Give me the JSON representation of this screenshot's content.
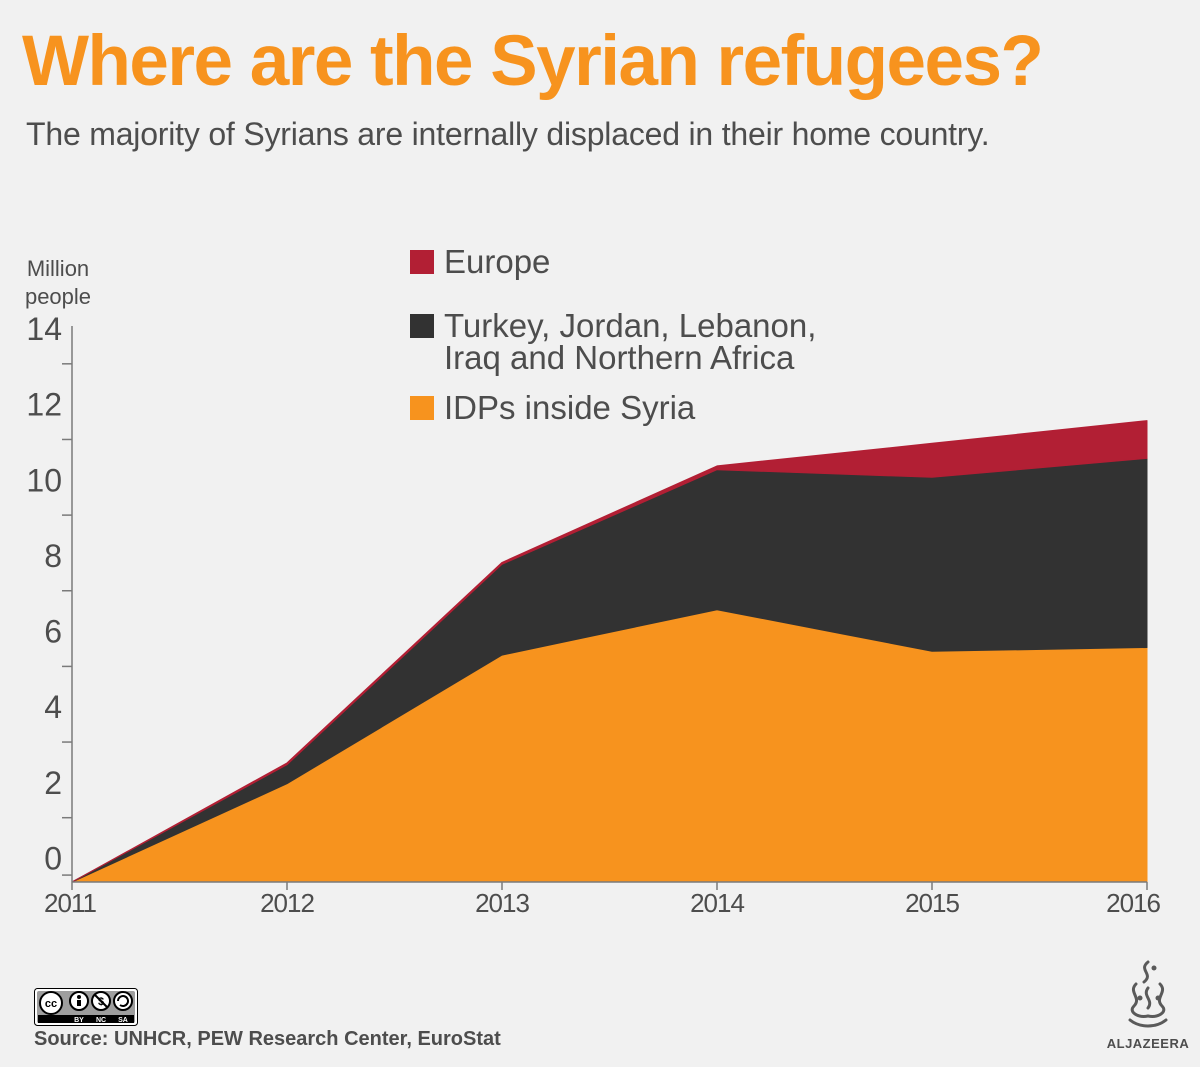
{
  "header": {
    "title": "Where are the Syrian refugees?",
    "subtitle": "The majority of Syrians are internally displaced in their home country."
  },
  "chart_data": {
    "type": "area",
    "stacked": true,
    "x": [
      2011,
      2012,
      2013,
      2014,
      2015,
      2016
    ],
    "ylabel": "Million people",
    "ylim": [
      -0.7,
      14
    ],
    "yticks": [
      0,
      2,
      4,
      6,
      8,
      10,
      12,
      14
    ],
    "grid": false,
    "legend_position": "top",
    "series": [
      {
        "name": "IDPs inside Syria",
        "color": "#f7931e",
        "values": [
          -0.7,
          1.9,
          5.3,
          6.5,
          5.4,
          5.5
        ]
      },
      {
        "name": "Turkey, Jordan, Lebanon, Iraq and Northern Africa",
        "color": "#323232",
        "values": [
          0.0,
          0.5,
          2.4,
          3.7,
          4.6,
          5.0
        ]
      },
      {
        "name": "Europe",
        "color": "#b21f34",
        "values": [
          0.0,
          0.05,
          0.05,
          0.1,
          0.9,
          1.0
        ]
      }
    ],
    "legend": [
      {
        "label_lines": [
          "Europe"
        ],
        "color": "#b21f34"
      },
      {
        "label_lines": [
          "Turkey, Jordan, Lebanon,",
          "Iraq and Northern Africa"
        ],
        "color": "#323232"
      },
      {
        "label_lines": [
          "IDPs inside Syria"
        ],
        "color": "#f7931e"
      }
    ]
  },
  "footer": {
    "source": "Source: UNHCR, PEW Research Center, EuroStat",
    "license_badge": [
      "BY",
      "NC",
      "SA"
    ],
    "brand": "ALJAZEERA"
  }
}
